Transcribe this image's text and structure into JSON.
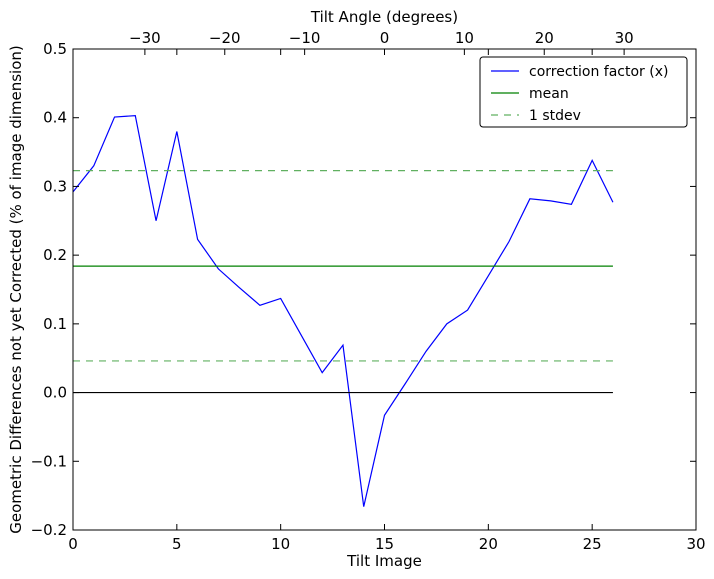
{
  "chart_data": {
    "type": "line",
    "xlabel": "Tilt Image",
    "ylabel": "Geometric Differences not yet Corrected (% of image dimension)",
    "top_xlabel": "Tilt Angle (degrees)",
    "xlim": [
      0,
      30
    ],
    "ylim": [
      -0.2,
      0.5
    ],
    "top_xlim": [
      -39,
      39
    ],
    "xticks": [
      0,
      5,
      10,
      15,
      20,
      25,
      30
    ],
    "xtick_labels": [
      "0",
      "5",
      "10",
      "15",
      "20",
      "25",
      "30"
    ],
    "yticks": [
      -0.2,
      -0.1,
      0.0,
      0.1,
      0.2,
      0.3,
      0.4,
      0.5
    ],
    "ytick_labels": [
      "−0.2",
      "−0.1",
      "0.0",
      "0.1",
      "0.2",
      "0.3",
      "0.4",
      "0.5"
    ],
    "top_xticks": [
      -30,
      -20,
      -10,
      0,
      10,
      20,
      30
    ],
    "top_xtick_labels": [
      "−30",
      "−20",
      "−10",
      "0",
      "10",
      "20",
      "30"
    ],
    "grid": false,
    "legend_position": "top-right",
    "series": [
      {
        "name": "correction factor (x)",
        "color": "#0000ff",
        "style": "solid",
        "x": [
          0,
          1,
          2,
          3,
          4,
          5,
          6,
          7,
          8,
          9,
          10,
          11,
          12,
          13,
          14,
          15,
          16,
          17,
          18,
          19,
          20,
          21,
          22,
          23,
          24,
          25,
          26
        ],
        "y": [
          0.292,
          0.33,
          0.401,
          0.403,
          0.25,
          0.38,
          0.223,
          0.18,
          0.153,
          0.127,
          0.137,
          0.083,
          0.029,
          0.069,
          -0.166,
          -0.033,
          0.013,
          0.06,
          0.1,
          0.12,
          0.17,
          0.22,
          0.282,
          0.279,
          0.274,
          0.338,
          0.277
        ]
      },
      {
        "name": "mean",
        "color": "#008000",
        "style": "solid",
        "x": [
          0,
          26
        ],
        "y": [
          0.184,
          0.184
        ]
      },
      {
        "name": "1 stdev",
        "color": "#60b060",
        "style": "dashed",
        "x": [
          0,
          26
        ],
        "y": [
          0.323,
          0.323
        ]
      },
      {
        "name": "",
        "color": "#60b060",
        "style": "dashed",
        "x": [
          0,
          26
        ],
        "y": [
          0.046,
          0.046
        ]
      },
      {
        "name": "",
        "color": "#000000",
        "style": "solid",
        "x": [
          0,
          26
        ],
        "y": [
          0.0,
          0.0
        ]
      }
    ],
    "legend": [
      "correction factor (x)",
      "mean",
      "1 stdev"
    ]
  }
}
